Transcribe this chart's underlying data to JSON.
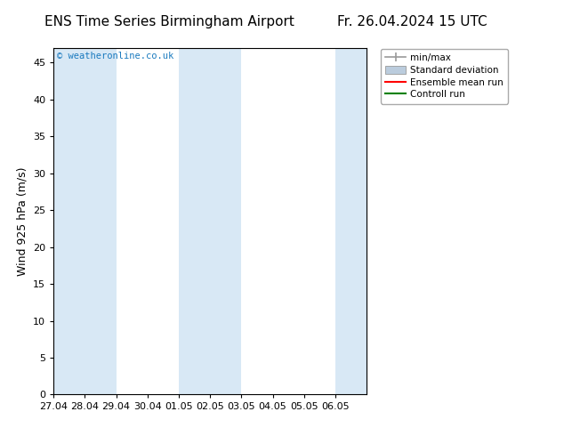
{
  "title_left": "ENS Time Series Birmingham Airport",
  "title_right": "Fr. 26.04.2024 15 UTC",
  "ylabel": "Wind 925 hPa (m/s)",
  "watermark": "© weatheronline.co.uk",
  "xlim_start": 0,
  "xlim_end": 10,
  "ylim": [
    0,
    47
  ],
  "yticks": [
    0,
    5,
    10,
    15,
    20,
    25,
    30,
    35,
    40,
    45
  ],
  "xtick_labels": [
    "27.04",
    "28.04",
    "29.04",
    "30.04",
    "01.05",
    "02.05",
    "03.05",
    "04.05",
    "05.05",
    "06.05"
  ],
  "shaded_bands": [
    [
      0.0,
      1.0
    ],
    [
      1.0,
      2.0
    ],
    [
      4.0,
      5.0
    ],
    [
      5.0,
      6.0
    ],
    [
      9.0,
      10.0
    ]
  ],
  "shaded_color": "#d8e8f5",
  "background_color": "#ffffff",
  "plot_bg_color": "#ffffff",
  "title_fontsize": 11,
  "label_fontsize": 9,
  "tick_fontsize": 8,
  "watermark_color": "#1a7abf",
  "spine_color": "#000000",
  "legend_minmax_color": "#999999",
  "legend_std_color": "#bbccdd",
  "legend_ens_color": "#ff0000",
  "legend_ctrl_color": "#008000"
}
